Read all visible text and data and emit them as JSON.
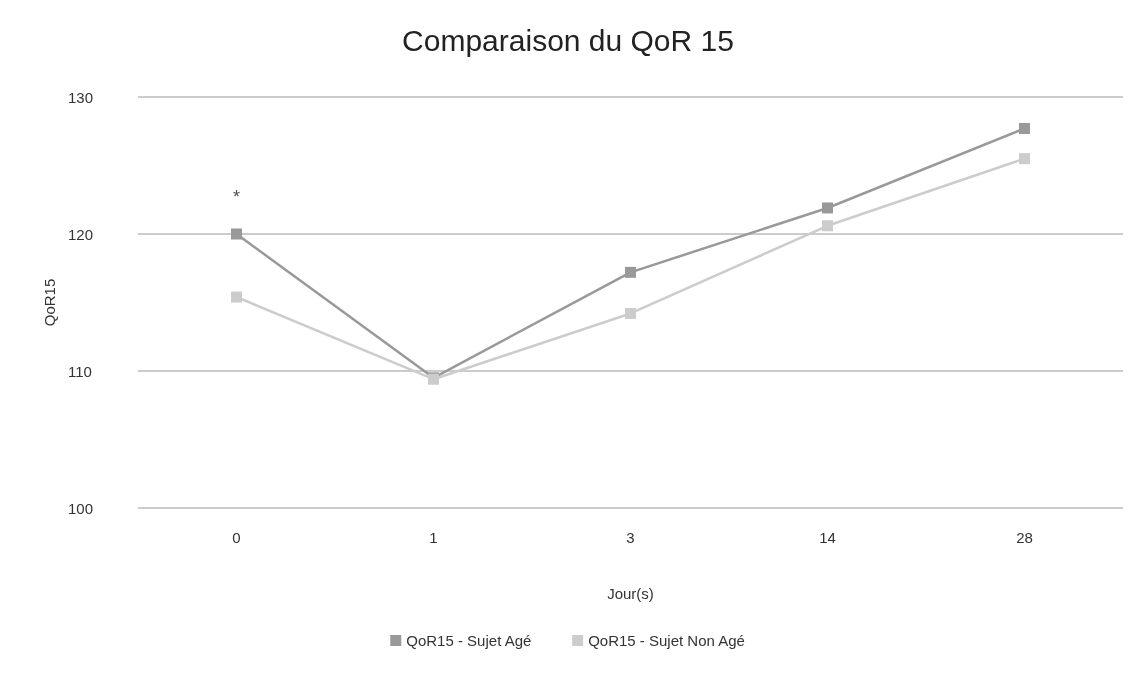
{
  "chart_data": {
    "type": "line",
    "title": "Comparaison du QoR 15",
    "xlabel": "Jour(s)",
    "ylabel": "QoR15",
    "categories": [
      "0",
      "1",
      "3",
      "14",
      "28"
    ],
    "series": [
      {
        "name": "QoR15 - Sujet Agé",
        "color": "#999999",
        "values": [
          120,
          109.5,
          117.2,
          121.9,
          127.7
        ]
      },
      {
        "name": "QoR15 - Sujet Non Agé",
        "color": "#cccccc",
        "values": [
          115.4,
          109.4,
          114.2,
          120.6,
          125.5
        ]
      }
    ],
    "ylim": [
      100,
      130
    ],
    "yticks": [
      100,
      110,
      120,
      130
    ],
    "grid": "y",
    "legend": "bottom",
    "marker": "square",
    "line_style": "solid",
    "annotations": [
      {
        "text": "*",
        "x": "0",
        "y": 120
      }
    ]
  }
}
